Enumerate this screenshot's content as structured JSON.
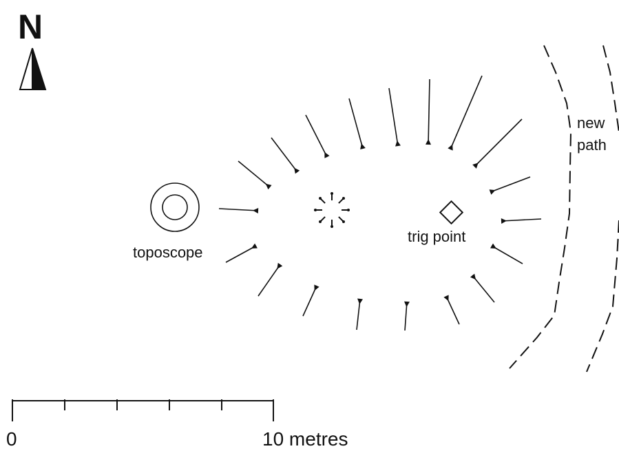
{
  "map": {
    "north_label": "N",
    "labels": {
      "toposcope": "toposcope",
      "trig_point": "trig point",
      "path_line1": "new",
      "path_line2": "path"
    },
    "scale": {
      "start_label": "0",
      "end_label": "10 metres",
      "length_m": 10,
      "divisions": 5
    },
    "features": {
      "stone_circle_stones": 22,
      "central_marks": 8
    },
    "colors": {
      "ink": "#111111",
      "background": "#ffffff"
    }
  }
}
